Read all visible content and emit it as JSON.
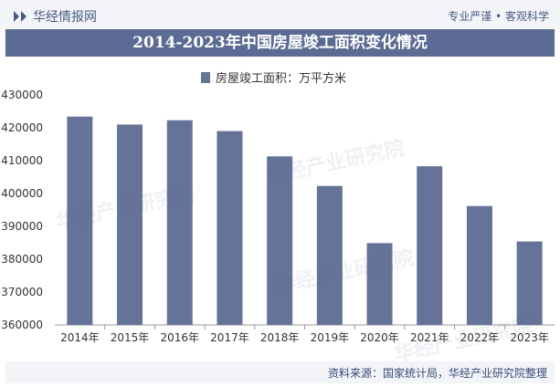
{
  "header": {
    "brand": "华经情报网",
    "slogan": "专业严谨 • 客观科学"
  },
  "legend_label": "房屋竣工面积：万平方米",
  "watermark": "华经产业研究院",
  "source": "资料来源：国家统计局，华经产业研究院整理",
  "colors": {
    "bar": "#667399",
    "title_bg": "#5b6b93",
    "accent": "#4a5a86"
  },
  "chart_data": {
    "type": "bar",
    "title": "2014-2023年中国房屋竣工面积变化情况",
    "categories": [
      "2014年",
      "2015年",
      "2016年",
      "2017年",
      "2018年",
      "2019年",
      "2020年",
      "2021年",
      "2022年",
      "2023年"
    ],
    "series": [
      {
        "name": "房屋竣工面积：万平方米",
        "values": [
          423400,
          421000,
          422300,
          419000,
          411300,
          402300,
          384900,
          408300,
          396200,
          385400
        ]
      }
    ],
    "yticks": [
      "430000",
      "420000",
      "410000",
      "400000",
      "390000",
      "380000",
      "370000",
      "360000"
    ],
    "ylim": [
      360000,
      430000
    ],
    "grid": false,
    "legend": "top-center"
  }
}
